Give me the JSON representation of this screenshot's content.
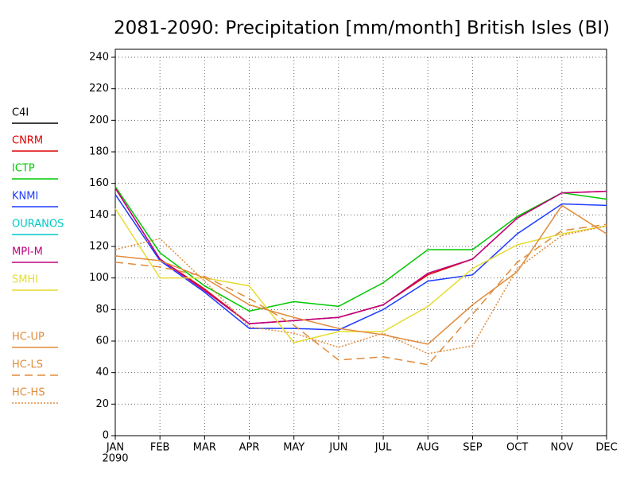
{
  "chart_data": {
    "type": "line",
    "title": "2081-2090: Precipitation [mm/month] British Isles (BI)",
    "categories": [
      "JAN",
      "FEB",
      "MAR",
      "APR",
      "MAY",
      "JUN",
      "JUL",
      "AUG",
      "SEP",
      "OCT",
      "NOV",
      "DEC"
    ],
    "x_sublabel": "2090",
    "ylim": [
      0,
      240
    ],
    "yticks": [
      0,
      20,
      40,
      60,
      80,
      100,
      120,
      140,
      160,
      180,
      200,
      220,
      240
    ],
    "grid": true,
    "legend": "left",
    "series": [
      {
        "name": "C4I",
        "color": "#000000",
        "linestyle": "solid",
        "values": [
          null,
          null,
          null,
          null,
          null,
          null,
          null,
          null,
          null,
          null,
          null,
          null
        ]
      },
      {
        "name": "CNRM",
        "color": "#e00000",
        "linestyle": "solid",
        "values": [
          157,
          112,
          93,
          71,
          73,
          75,
          83,
          102,
          112,
          138,
          154,
          155
        ]
      },
      {
        "name": "ICTP",
        "color": "#00c800",
        "linestyle": "solid",
        "values": [
          158,
          116,
          95,
          79,
          85,
          82,
          97,
          118,
          118,
          139,
          154,
          150
        ]
      },
      {
        "name": "KNMI",
        "color": "#1e3cff",
        "linestyle": "solid",
        "values": [
          153,
          111,
          91,
          68,
          68,
          67,
          80,
          98,
          102,
          128,
          147,
          146
        ]
      },
      {
        "name": "OURANOS",
        "color": "#00c8c8",
        "linestyle": "solid",
        "values": [
          null,
          null,
          null,
          null,
          null,
          null,
          null,
          null,
          null,
          null,
          null,
          null
        ]
      },
      {
        "name": "MPI-M",
        "color": "#c00080",
        "linestyle": "solid",
        "values": [
          157,
          112,
          92,
          71,
          73,
          75,
          83,
          103,
          112,
          138,
          154,
          155
        ]
      },
      {
        "name": "SMHI",
        "color": "#e6dc32",
        "linestyle": "solid",
        "values": [
          144,
          100,
          100,
          95,
          59,
          66,
          66,
          82,
          106,
          121,
          128,
          133
        ]
      },
      {
        "name": "HC-UP",
        "color": "#e08c3c",
        "linestyle": "solid",
        "values": [
          114,
          111,
          100,
          83,
          75,
          68,
          64,
          58,
          83,
          104,
          146,
          128
        ]
      },
      {
        "name": "HC-LS",
        "color": "#e08c3c",
        "linestyle": "dashed",
        "values": [
          110,
          107,
          101,
          87,
          70,
          48,
          50,
          45,
          77,
          110,
          130,
          134
        ]
      },
      {
        "name": "HC-HS",
        "color": "#e08c3c",
        "linestyle": "dotted",
        "values": [
          118,
          125,
          98,
          69,
          65,
          56,
          65,
          52,
          57,
          106,
          127,
          133
        ]
      }
    ]
  }
}
